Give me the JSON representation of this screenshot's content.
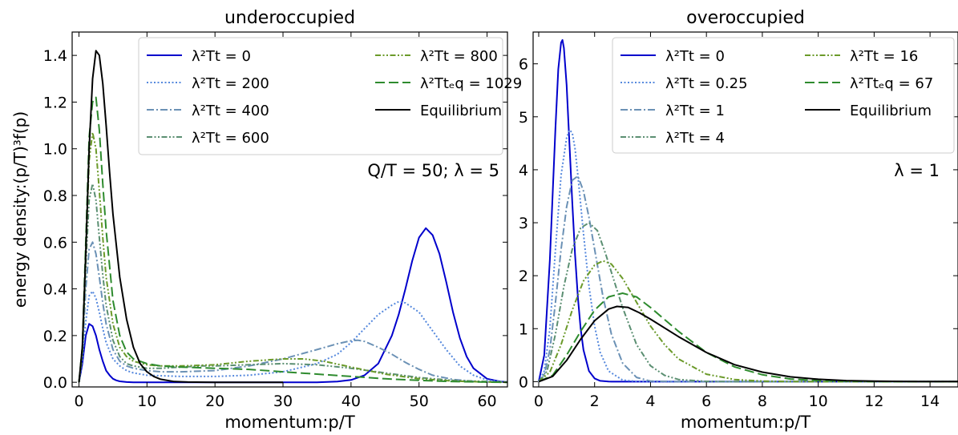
{
  "chart_data": [
    {
      "type": "line",
      "title": "underoccupied",
      "xlabel": "momentum:p/T",
      "ylabel": "energy density:(p/T)³f(p)",
      "annotation": "Q/T = 50; λ = 5",
      "xlim": [
        -1,
        63
      ],
      "ylim": [
        -0.02,
        1.5
      ],
      "xticks": [
        0,
        10,
        20,
        30,
        40,
        50,
        60
      ],
      "xtick_labels": [
        "0",
        "10",
        "20",
        "30",
        "40",
        "50",
        "60"
      ],
      "yticks": [
        0.0,
        0.2,
        0.4,
        0.6,
        0.8,
        1.0,
        1.2,
        1.4
      ],
      "ytick_labels": [
        "0.0",
        "0.2",
        "0.4",
        "0.6",
        "0.8",
        "1.0",
        "1.2",
        "1.4"
      ],
      "legend_placement": "top-right",
      "legend_columns": 2,
      "series": [
        {
          "name": "λ²Tt = 0",
          "color": "#0000cc",
          "dash": "solid",
          "x": [
            0,
            0.5,
            1,
            1.5,
            2,
            2.5,
            3,
            3.5,
            4,
            4.5,
            5,
            5.5,
            6,
            7,
            8,
            10,
            15,
            20,
            30,
            35,
            38,
            40,
            42,
            44,
            46,
            47,
            48,
            49,
            50,
            51,
            52,
            53,
            54,
            55,
            56,
            57,
            58,
            60,
            62,
            63
          ],
          "y": [
            0,
            0.08,
            0.2,
            0.25,
            0.24,
            0.2,
            0.14,
            0.09,
            0.05,
            0.03,
            0.015,
            0.008,
            0.004,
            0.001,
            0.0,
            0.0,
            0.0,
            0.0,
            0.0,
            0.0,
            0.003,
            0.01,
            0.03,
            0.08,
            0.2,
            0.29,
            0.4,
            0.52,
            0.62,
            0.66,
            0.63,
            0.55,
            0.43,
            0.3,
            0.19,
            0.11,
            0.06,
            0.015,
            0.003,
            0.001
          ]
        },
        {
          "name": "λ²Tt = 200",
          "color": "#5588dd",
          "dash": "dotted",
          "x": [
            0,
            0.5,
            1,
            1.5,
            2,
            2.5,
            3,
            3.5,
            4,
            5,
            6,
            7,
            8,
            10,
            15,
            20,
            25,
            30,
            35,
            38,
            40,
            42,
            44,
            46,
            47,
            48,
            50,
            52,
            54,
            56,
            58,
            60,
            62,
            63
          ],
          "y": [
            0,
            0.1,
            0.26,
            0.37,
            0.39,
            0.36,
            0.3,
            0.23,
            0.17,
            0.1,
            0.07,
            0.05,
            0.04,
            0.03,
            0.025,
            0.025,
            0.03,
            0.045,
            0.08,
            0.12,
            0.17,
            0.23,
            0.29,
            0.33,
            0.345,
            0.34,
            0.3,
            0.22,
            0.14,
            0.07,
            0.03,
            0.01,
            0.003,
            0.001
          ]
        },
        {
          "name": "λ²Tt = 400",
          "color": "#6b91b5",
          "dash": "dashdot",
          "x": [
            0,
            0.5,
            1,
            1.5,
            2,
            2.5,
            3,
            3.5,
            4,
            5,
            6,
            7,
            8,
            10,
            12,
            15,
            20,
            25,
            30,
            35,
            38,
            40,
            41,
            42,
            44,
            46,
            48,
            50,
            52,
            55,
            58,
            60,
            63
          ],
          "y": [
            0,
            0.13,
            0.4,
            0.57,
            0.6,
            0.55,
            0.45,
            0.34,
            0.25,
            0.14,
            0.09,
            0.07,
            0.06,
            0.05,
            0.045,
            0.045,
            0.05,
            0.07,
            0.1,
            0.14,
            0.165,
            0.178,
            0.18,
            0.175,
            0.15,
            0.12,
            0.085,
            0.055,
            0.03,
            0.012,
            0.004,
            0.002,
            0.0
          ]
        },
        {
          "name": "λ²Tt = 600",
          "color": "#5b8f72",
          "dash": "dashdotdot",
          "x": [
            0,
            0.5,
            1,
            1.5,
            2,
            2.5,
            3,
            3.5,
            4,
            5,
            6,
            7,
            8,
            10,
            12,
            15,
            18,
            20,
            25,
            30,
            35,
            40,
            45,
            50,
            55,
            60,
            63
          ],
          "y": [
            0,
            0.12,
            0.5,
            0.78,
            0.85,
            0.78,
            0.62,
            0.46,
            0.33,
            0.18,
            0.11,
            0.08,
            0.07,
            0.06,
            0.06,
            0.065,
            0.07,
            0.07,
            0.075,
            0.08,
            0.075,
            0.06,
            0.04,
            0.02,
            0.008,
            0.003,
            0.001
          ]
        },
        {
          "name": "λ²Tt = 800",
          "color": "#6b9a2a",
          "dash": "dashdotdot",
          "x": [
            0,
            0.5,
            1,
            1.5,
            2,
            2.5,
            3,
            3.5,
            4,
            5,
            6,
            7,
            8,
            10,
            12,
            15,
            20,
            25,
            30,
            33,
            36,
            40,
            45,
            50,
            55,
            60,
            63
          ],
          "y": [
            0,
            0.12,
            0.55,
            0.95,
            1.07,
            1.0,
            0.82,
            0.62,
            0.45,
            0.25,
            0.15,
            0.11,
            0.09,
            0.075,
            0.07,
            0.07,
            0.075,
            0.09,
            0.1,
            0.1,
            0.09,
            0.065,
            0.035,
            0.015,
            0.005,
            0.001,
            0.0
          ]
        },
        {
          "name": "λ²Ttₑq = 1029",
          "color": "#2e8b2e",
          "dash": "dashed",
          "x": [
            0,
            0.5,
            1,
            1.5,
            2,
            2.5,
            3,
            3.5,
            4,
            5,
            6,
            7,
            8,
            10,
            12,
            15,
            20,
            25,
            30,
            35,
            40,
            45,
            50,
            55,
            60,
            63
          ],
          "y": [
            0,
            0.15,
            0.6,
            1.05,
            1.2,
            1.22,
            1.08,
            0.85,
            0.65,
            0.35,
            0.2,
            0.13,
            0.1,
            0.08,
            0.07,
            0.065,
            0.06,
            0.055,
            0.045,
            0.035,
            0.025,
            0.015,
            0.008,
            0.003,
            0.001,
            0.0
          ]
        },
        {
          "name": "Equilibrium",
          "color": "#000000",
          "dash": "solid",
          "x": [
            0,
            0.5,
            1,
            1.5,
            2,
            2.5,
            3,
            3.5,
            4,
            4.5,
            5,
            6,
            7,
            8,
            9,
            10,
            11,
            12,
            14,
            16,
            20,
            25,
            30
          ],
          "y": [
            0,
            0.15,
            0.55,
            1.0,
            1.3,
            1.42,
            1.4,
            1.28,
            1.1,
            0.9,
            0.72,
            0.45,
            0.27,
            0.15,
            0.08,
            0.045,
            0.025,
            0.013,
            0.003,
            0.001,
            0.0,
            0.0,
            0.0
          ]
        }
      ]
    },
    {
      "type": "line",
      "title": "overoccupied",
      "xlabel": "momentum:p/T",
      "ylabel": "",
      "annotation": "λ = 1",
      "xlim": [
        -0.2,
        15
      ],
      "ylim": [
        -0.1,
        6.6
      ],
      "xticks": [
        0,
        2,
        4,
        6,
        8,
        10,
        12,
        14
      ],
      "xtick_labels": [
        "0",
        "2",
        "4",
        "6",
        "8",
        "10",
        "12",
        "14"
      ],
      "yticks": [
        0,
        1,
        2,
        3,
        4,
        5,
        6
      ],
      "ytick_labels": [
        "0",
        "1",
        "2",
        "3",
        "4",
        "5",
        "6"
      ],
      "legend_placement": "top-right",
      "legend_columns": 2,
      "series": [
        {
          "name": "λ²Tt = 0",
          "color": "#0000cc",
          "dash": "solid",
          "x": [
            0,
            0.2,
            0.4,
            0.6,
            0.7,
            0.8,
            0.85,
            0.9,
            1.0,
            1.1,
            1.2,
            1.3,
            1.4,
            1.5,
            1.6,
            1.8,
            2.0,
            2.2,
            2.5,
            3.0,
            15
          ],
          "y": [
            0,
            0.5,
            2.3,
            4.8,
            5.9,
            6.4,
            6.45,
            6.3,
            5.6,
            4.5,
            3.4,
            2.4,
            1.6,
            1.0,
            0.6,
            0.2,
            0.06,
            0.015,
            0.002,
            0.0,
            0.0
          ]
        },
        {
          "name": "λ²Tt = 0.25",
          "color": "#5588dd",
          "dash": "dotted",
          "x": [
            0,
            0.2,
            0.4,
            0.6,
            0.8,
            1.0,
            1.1,
            1.2,
            1.3,
            1.4,
            1.6,
            1.8,
            2.0,
            2.2,
            2.5,
            3.0,
            3.5,
            4,
            15
          ],
          "y": [
            0,
            0.2,
            1.0,
            2.5,
            3.9,
            4.6,
            4.75,
            4.7,
            4.4,
            3.9,
            2.8,
            1.8,
            1.05,
            0.55,
            0.2,
            0.03,
            0.005,
            0.0,
            0.0
          ]
        },
        {
          "name": "λ²Tt = 1",
          "color": "#6b91b5",
          "dash": "dashdot",
          "x": [
            0,
            0.2,
            0.4,
            0.6,
            0.8,
            1.0,
            1.2,
            1.4,
            1.6,
            1.8,
            2.0,
            2.3,
            2.6,
            3.0,
            3.5,
            4,
            5,
            15
          ],
          "y": [
            0,
            0.12,
            0.6,
            1.5,
            2.5,
            3.3,
            3.8,
            3.88,
            3.6,
            3.1,
            2.5,
            1.6,
            0.9,
            0.35,
            0.08,
            0.01,
            0.0,
            0.0
          ]
        },
        {
          "name": "λ²Tt = 4",
          "color": "#5b8f72",
          "dash": "dashdotdot",
          "x": [
            0,
            0.3,
            0.6,
            0.9,
            1.2,
            1.5,
            1.8,
            2.1,
            2.4,
            2.7,
            3.0,
            3.5,
            4,
            4.5,
            5,
            6,
            7,
            15
          ],
          "y": [
            0,
            0.2,
            0.9,
            1.8,
            2.5,
            2.9,
            3.0,
            2.85,
            2.4,
            1.9,
            1.4,
            0.7,
            0.3,
            0.12,
            0.04,
            0.004,
            0.0,
            0.0
          ]
        },
        {
          "name": "λ²Tt = 16",
          "color": "#6b9a2a",
          "dash": "dashdotdot",
          "x": [
            0,
            0.4,
            0.8,
            1.2,
            1.6,
            2.0,
            2.3,
            2.6,
            3.0,
            3.5,
            4,
            4.5,
            5,
            6,
            7,
            8,
            9,
            15
          ],
          "y": [
            0,
            0.18,
            0.7,
            1.35,
            1.9,
            2.2,
            2.28,
            2.22,
            1.95,
            1.5,
            1.05,
            0.7,
            0.43,
            0.14,
            0.04,
            0.01,
            0.002,
            0.0
          ]
        },
        {
          "name": "λ²Ttₑq = 67",
          "color": "#2e8b2e",
          "dash": "dashed",
          "x": [
            0,
            0.5,
            1.0,
            1.5,
            2.0,
            2.5,
            3.0,
            3.5,
            4,
            5,
            6,
            7,
            8,
            9,
            10,
            12,
            15
          ],
          "y": [
            0,
            0.12,
            0.5,
            0.95,
            1.35,
            1.6,
            1.67,
            1.6,
            1.4,
            0.95,
            0.55,
            0.28,
            0.13,
            0.05,
            0.02,
            0.002,
            0.0
          ]
        },
        {
          "name": "Equilibrium",
          "color": "#000000",
          "dash": "solid",
          "x": [
            0,
            0.5,
            1.0,
            1.5,
            2.0,
            2.5,
            2.8,
            3.2,
            3.6,
            4,
            5,
            6,
            7,
            8,
            9,
            10,
            11,
            12,
            13,
            14,
            15
          ],
          "y": [
            0,
            0.1,
            0.4,
            0.8,
            1.15,
            1.37,
            1.42,
            1.4,
            1.3,
            1.18,
            0.85,
            0.55,
            0.32,
            0.18,
            0.09,
            0.045,
            0.02,
            0.01,
            0.005,
            0.002,
            0.001
          ]
        }
      ]
    }
  ]
}
